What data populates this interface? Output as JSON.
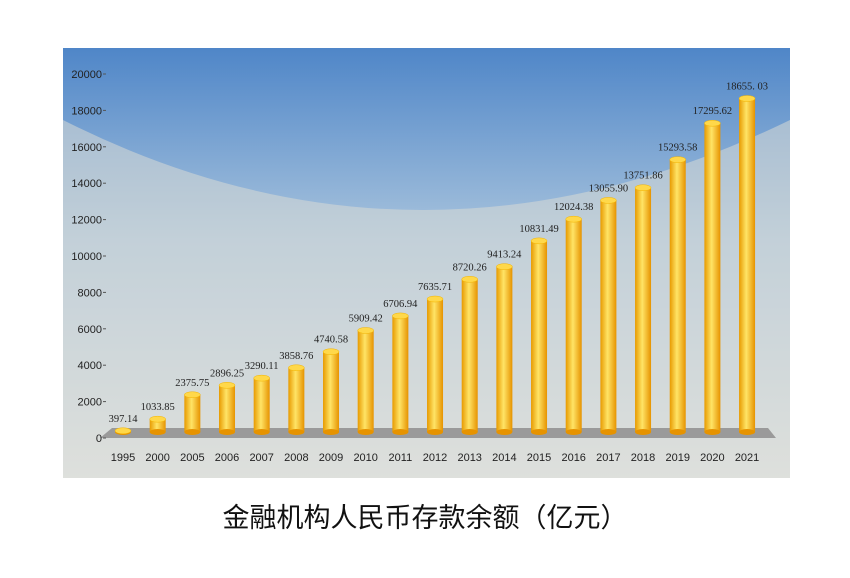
{
  "chart_data": {
    "type": "bar",
    "title": "金融机构人民币存款余额（亿元）",
    "categories": [
      "1995",
      "2000",
      "2005",
      "2006",
      "2007",
      "2008",
      "2009",
      "2010",
      "2011",
      "2012",
      "2013",
      "2014",
      "2015",
      "2016",
      "2017",
      "2018",
      "2019",
      "2020",
      "2021"
    ],
    "values": [
      397.14,
      1033.85,
      2375.75,
      2896.25,
      3290.11,
      3858.76,
      4740.58,
      5909.42,
      6706.94,
      7635.71,
      8720.26,
      9413.24,
      10831.49,
      12024.38,
      13055.9,
      13751.86,
      15293.58,
      17295.62,
      18655.03
    ],
    "value_labels": [
      "397.14",
      "1033.85",
      "2375.75",
      "2896.25",
      "3290.11",
      "3858.76",
      "4740.58",
      "5909.42",
      "6706.94",
      "7635.71",
      "8720.26",
      "9413.24",
      "10831.49",
      "12024.38",
      "13055.90",
      "13751.86",
      "15293.58",
      "17295.62",
      "18655. 03"
    ],
    "color": "#f5b800",
    "ylim": [
      0,
      20000
    ],
    "yticks": [
      0,
      2000,
      4000,
      6000,
      8000,
      10000,
      12000,
      14000,
      16000,
      18000,
      20000
    ]
  }
}
